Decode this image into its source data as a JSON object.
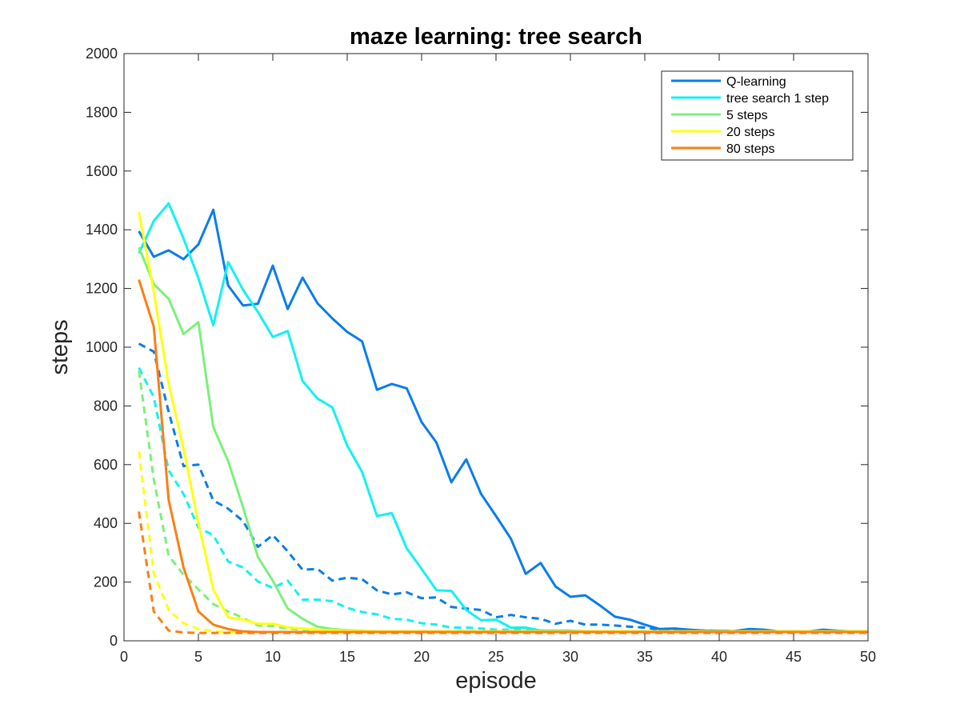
{
  "chart_data": {
    "type": "line",
    "title": "maze learning: tree search",
    "xlabel": "episode",
    "ylabel": "steps",
    "xlim": [
      0,
      50
    ],
    "ylim": [
      0,
      2000
    ],
    "xticks": [
      "0",
      "5",
      "10",
      "15",
      "20",
      "25",
      "30",
      "35",
      "40",
      "45",
      "50"
    ],
    "yticks": [
      "0",
      "200",
      "400",
      "600",
      "800",
      "1000",
      "1200",
      "1400",
      "1600",
      "1800",
      "2000"
    ],
    "grid": false,
    "legend_position": "top-right",
    "x": [
      1,
      2,
      3,
      4,
      5,
      6,
      7,
      8,
      9,
      10,
      11,
      12,
      13,
      14,
      15,
      16,
      17,
      18,
      19,
      20,
      21,
      22,
      23,
      24,
      25,
      26,
      27,
      28,
      29,
      30,
      31,
      32,
      33,
      34,
      35,
      36,
      37,
      38,
      39,
      40,
      41,
      42,
      43,
      44,
      45,
      46,
      47,
      48,
      49,
      50
    ],
    "series": [
      {
        "name": "Q-learning",
        "color": "#0b7dea",
        "style": "solid",
        "values": [
          1395,
          1308,
          1330,
          1300,
          1350,
          1468,
          1210,
          1142,
          1148,
          1278,
          1130,
          1237,
          1150,
          1098,
          1052,
          1020,
          855,
          875,
          860,
          745,
          675,
          540,
          618,
          500,
          425,
          348,
          228,
          265,
          185,
          150,
          155,
          120,
          82,
          72,
          55,
          40,
          42,
          38,
          35,
          34,
          33,
          40,
          38,
          32,
          32,
          32,
          38,
          34,
          32,
          32
        ]
      },
      {
        "name": "tree search 1 step",
        "color": "#13f1f1",
        "style": "solid",
        "values": [
          1320,
          1430,
          1490,
          1370,
          1235,
          1075,
          1290,
          1195,
          1120,
          1035,
          1055,
          885,
          825,
          795,
          665,
          575,
          425,
          435,
          315,
          245,
          172,
          170,
          105,
          70,
          72,
          45,
          45,
          35,
          35,
          35,
          30,
          30,
          30,
          30,
          30,
          30,
          30,
          30,
          30,
          30,
          30,
          30,
          30,
          30,
          30,
          30,
          30,
          30,
          30,
          30
        ]
      },
      {
        "name": "5 steps",
        "color": "#7bf07b",
        "style": "solid",
        "values": [
          1340,
          1215,
          1165,
          1045,
          1085,
          728,
          612,
          455,
          285,
          205,
          110,
          75,
          48,
          40,
          36,
          34,
          32,
          32,
          32,
          32,
          32,
          32,
          32,
          32,
          32,
          32,
          32,
          32,
          32,
          32,
          32,
          32,
          32,
          32,
          32,
          32,
          32,
          32,
          32,
          32,
          32,
          32,
          32,
          32,
          32,
          32,
          32,
          32,
          32,
          32
        ]
      },
      {
        "name": "20 steps",
        "color": "#ffff10",
        "style": "solid",
        "values": [
          1460,
          1190,
          875,
          655,
          400,
          175,
          80,
          72,
          58,
          58,
          46,
          42,
          38,
          36,
          34,
          33,
          32,
          32,
          32,
          32,
          32,
          32,
          32,
          32,
          32,
          32,
          32,
          32,
          32,
          32,
          32,
          32,
          32,
          32,
          32,
          32,
          32,
          32,
          32,
          32,
          32,
          32,
          32,
          32,
          32,
          32,
          32,
          32,
          32,
          32
        ]
      },
      {
        "name": "80 steps",
        "color": "#fb7f13",
        "style": "solid",
        "values": [
          1230,
          1070,
          480,
          250,
          100,
          55,
          40,
          32,
          30,
          30,
          30,
          30,
          30,
          30,
          30,
          30,
          30,
          30,
          30,
          30,
          30,
          30,
          30,
          30,
          30,
          30,
          30,
          30,
          30,
          30,
          30,
          30,
          30,
          30,
          30,
          30,
          30,
          30,
          30,
          30,
          30,
          30,
          30,
          30,
          30,
          30,
          30,
          30,
          30,
          30
        ]
      },
      {
        "color": "#0b7dea",
        "style": "dashed",
        "values": [
          1012,
          985,
          780,
          595,
          600,
          478,
          450,
          408,
          320,
          360,
          305,
          242,
          245,
          205,
          215,
          210,
          172,
          158,
          165,
          145,
          148,
          115,
          110,
          105,
          80,
          88,
          80,
          75,
          58,
          68,
          55,
          55,
          52,
          48,
          45,
          38,
          38,
          36,
          35,
          34,
          33,
          33,
          32,
          32,
          32,
          32,
          32,
          32,
          32,
          32
        ]
      },
      {
        "color": "#13f1f1",
        "style": "dashed",
        "values": [
          930,
          830,
          580,
          500,
          385,
          360,
          270,
          250,
          202,
          180,
          205,
          140,
          140,
          135,
          112,
          98,
          90,
          75,
          72,
          60,
          55,
          45,
          45,
          42,
          38,
          38,
          36,
          35,
          35,
          34,
          33,
          32,
          32,
          32,
          32,
          32,
          32,
          32,
          32,
          32,
          32,
          32,
          32,
          32,
          32,
          32,
          32,
          32,
          32,
          32
        ]
      },
      {
        "color": "#7bf07b",
        "style": "dashed",
        "values": [
          920,
          550,
          290,
          225,
          175,
          125,
          100,
          78,
          52,
          50,
          42,
          38,
          35,
          33,
          32,
          32,
          32,
          32,
          32,
          32,
          32,
          32,
          32,
          32,
          32,
          32,
          32,
          32,
          32,
          32,
          32,
          32,
          32,
          32,
          32,
          32,
          32,
          32,
          32,
          32,
          32,
          32,
          32,
          32,
          32,
          32,
          32,
          32,
          32,
          32
        ]
      },
      {
        "color": "#ffff10",
        "style": "dashed",
        "values": [
          645,
          230,
          105,
          60,
          40,
          33,
          30,
          30,
          30,
          30,
          30,
          30,
          30,
          30,
          30,
          30,
          30,
          30,
          30,
          30,
          30,
          30,
          30,
          30,
          30,
          30,
          30,
          30,
          30,
          30,
          30,
          30,
          30,
          30,
          30,
          30,
          30,
          30,
          30,
          30,
          30,
          30,
          30,
          30,
          30,
          30,
          30,
          30,
          30,
          30
        ]
      },
      {
        "color": "#fb7f13",
        "style": "dashed",
        "values": [
          440,
          100,
          35,
          28,
          27,
          27,
          27,
          27,
          27,
          27,
          27,
          27,
          27,
          27,
          27,
          27,
          27,
          27,
          27,
          27,
          27,
          27,
          27,
          27,
          27,
          27,
          27,
          27,
          27,
          27,
          27,
          27,
          27,
          27,
          27,
          27,
          27,
          27,
          27,
          27,
          27,
          27,
          27,
          27,
          27,
          27,
          27,
          27,
          27,
          27
        ]
      }
    ]
  }
}
